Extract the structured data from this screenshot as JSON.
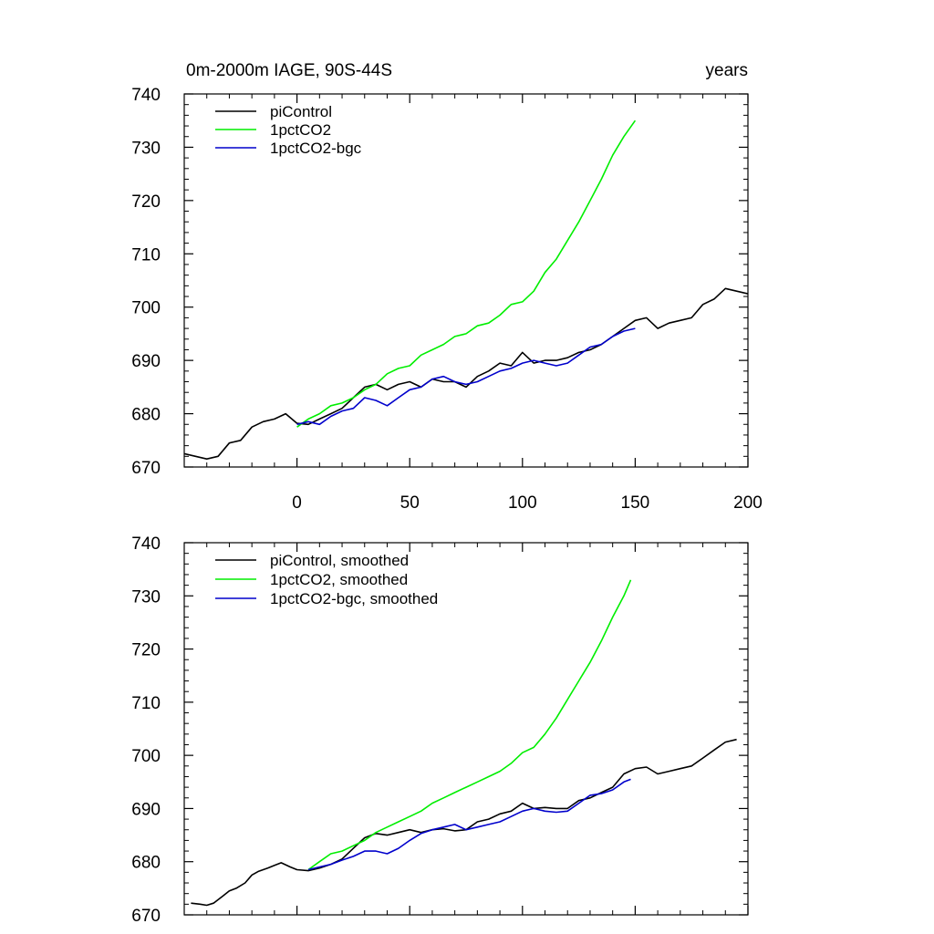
{
  "colors": {
    "piControl": "#000000",
    "1pctCO2": "#00ee00",
    "1pctCO2-bgc": "#0000cc",
    "axis": "#000000",
    "background": "#ffffff"
  },
  "chart_data": [
    {
      "type": "line",
      "title": "0m-2000m IAGE, 90S-44S",
      "title_right": "years",
      "xlabel": "",
      "ylabel": "",
      "xlim": [
        -50,
        200
      ],
      "ylim": [
        670,
        740
      ],
      "xticks": [
        0,
        50,
        100,
        150,
        200
      ],
      "xtick_labels": [
        "0",
        "50",
        "100",
        "150",
        "200"
      ],
      "yticks": [
        670,
        680,
        690,
        700,
        710,
        720,
        730,
        740
      ],
      "ytick_labels": [
        "670",
        "680",
        "690",
        "700",
        "710",
        "720",
        "730",
        "740"
      ],
      "legend_position": "top-left",
      "series": [
        {
          "name": "piControl",
          "color_key": "piControl",
          "x": [
            -50,
            -45,
            -40,
            -35,
            -30,
            -25,
            -20,
            -15,
            -10,
            -5,
            0,
            5,
            10,
            15,
            20,
            25,
            30,
            35,
            40,
            45,
            50,
            55,
            60,
            65,
            70,
            75,
            80,
            85,
            90,
            95,
            100,
            105,
            110,
            115,
            120,
            125,
            130,
            135,
            140,
            145,
            150,
            155,
            160,
            165,
            170,
            175,
            180,
            185,
            190,
            195,
            200
          ],
          "y": [
            672.5,
            672.0,
            671.5,
            672.0,
            674.5,
            675.0,
            677.5,
            678.5,
            679.0,
            680.0,
            678.2,
            678.0,
            679.0,
            680.0,
            681.0,
            683.0,
            685.0,
            685.5,
            684.5,
            685.5,
            686.0,
            685.0,
            686.5,
            686.0,
            686.0,
            685.0,
            687.0,
            688.0,
            689.5,
            689.0,
            691.5,
            689.5,
            690.0,
            690.0,
            690.5,
            691.5,
            692.0,
            693.0,
            694.5,
            696.0,
            697.5,
            698.0,
            696.0,
            697.0,
            697.5,
            698.0,
            700.5,
            701.5,
            703.5,
            703.0,
            702.5
          ]
        },
        {
          "name": "1pctCO2",
          "color_key": "1pctCO2",
          "x": [
            0,
            5,
            10,
            15,
            20,
            25,
            30,
            35,
            40,
            45,
            50,
            55,
            60,
            65,
            70,
            75,
            80,
            85,
            90,
            95,
            100,
            105,
            110,
            115,
            120,
            125,
            130,
            135,
            140,
            145,
            150
          ],
          "y": [
            677.5,
            679.0,
            680.0,
            681.5,
            682.0,
            683.0,
            684.5,
            685.5,
            687.5,
            688.5,
            689.0,
            691.0,
            692.0,
            693.0,
            694.5,
            695.0,
            696.5,
            697.0,
            698.5,
            700.5,
            701.0,
            703.0,
            706.5,
            709.0,
            712.5,
            716.0,
            720.0,
            724.0,
            728.5,
            732.0,
            735.0
          ]
        },
        {
          "name": "1pctCO2-bgc",
          "color_key": "1pctCO2-bgc",
          "x": [
            0,
            5,
            10,
            15,
            20,
            25,
            30,
            35,
            40,
            45,
            50,
            55,
            60,
            65,
            70,
            75,
            80,
            85,
            90,
            95,
            100,
            105,
            110,
            115,
            120,
            125,
            130,
            135,
            140,
            145,
            150
          ],
          "y": [
            678.0,
            678.5,
            678.0,
            679.5,
            680.5,
            681.0,
            683.0,
            682.5,
            681.5,
            683.0,
            684.5,
            685.0,
            686.5,
            687.0,
            686.0,
            685.5,
            686.0,
            687.0,
            688.0,
            688.5,
            689.5,
            690.0,
            689.5,
            689.0,
            689.5,
            691.0,
            692.5,
            693.0,
            694.5,
            695.5,
            696.0
          ]
        }
      ]
    },
    {
      "type": "line",
      "title": "",
      "title_right": "",
      "xlabel": "",
      "ylabel": "",
      "xlim": [
        -50,
        200
      ],
      "ylim": [
        670,
        740
      ],
      "xticks": [
        0,
        50,
        100,
        150,
        200
      ],
      "xtick_labels": [],
      "yticks": [
        670,
        680,
        690,
        700,
        710,
        720,
        730,
        740
      ],
      "ytick_labels": [
        "670",
        "680",
        "690",
        "700",
        "710",
        "720",
        "730",
        "740"
      ],
      "legend_position": "top-left",
      "series": [
        {
          "name": "piControl, smoothed",
          "color_key": "piControl",
          "x": [
            -47,
            -43,
            -40,
            -37,
            -33,
            -30,
            -27,
            -23,
            -20,
            -17,
            -13,
            -10,
            -7,
            -3,
            0,
            5,
            10,
            15,
            20,
            25,
            30,
            35,
            40,
            45,
            50,
            55,
            60,
            65,
            70,
            75,
            80,
            85,
            90,
            95,
            100,
            105,
            110,
            115,
            120,
            125,
            130,
            135,
            140,
            145,
            150,
            155,
            160,
            165,
            170,
            175,
            180,
            185,
            190,
            195
          ],
          "y": [
            672.2,
            672.0,
            671.8,
            672.2,
            673.5,
            674.5,
            675.0,
            676.0,
            677.5,
            678.2,
            678.8,
            679.3,
            679.8,
            679.0,
            678.5,
            678.3,
            678.8,
            679.5,
            680.5,
            682.5,
            684.5,
            685.3,
            685.0,
            685.5,
            686.0,
            685.5,
            686.0,
            686.2,
            685.8,
            686.0,
            687.5,
            688.0,
            689.0,
            689.5,
            691.0,
            690.0,
            690.2,
            690.0,
            690.0,
            691.5,
            692.0,
            693.0,
            694.0,
            696.5,
            697.5,
            697.8,
            696.5,
            697.0,
            697.5,
            698.0,
            699.5,
            701.0,
            702.5,
            703.0
          ]
        },
        {
          "name": "1pctCO2, smoothed",
          "color_key": "1pctCO2",
          "x": [
            5,
            10,
            15,
            20,
            25,
            30,
            35,
            40,
            45,
            50,
            55,
            60,
            65,
            70,
            75,
            80,
            85,
            90,
            95,
            100,
            105,
            110,
            115,
            120,
            125,
            130,
            135,
            140,
            145,
            148
          ],
          "y": [
            678.5,
            680.0,
            681.5,
            682.0,
            683.0,
            684.0,
            685.5,
            686.5,
            687.5,
            688.5,
            689.5,
            691.0,
            692.0,
            693.0,
            694.0,
            695.0,
            696.0,
            697.0,
            698.5,
            700.5,
            701.5,
            704.0,
            707.0,
            710.5,
            714.0,
            717.5,
            721.5,
            726.0,
            730.0,
            733.0
          ]
        },
        {
          "name": "1pctCO2-bgc, smoothed",
          "color_key": "1pctCO2-bgc",
          "x": [
            5,
            10,
            15,
            20,
            25,
            30,
            35,
            40,
            45,
            50,
            55,
            60,
            65,
            70,
            75,
            80,
            85,
            90,
            95,
            100,
            105,
            110,
            115,
            120,
            125,
            130,
            135,
            140,
            145,
            148
          ],
          "y": [
            678.5,
            679.0,
            679.5,
            680.3,
            681.0,
            682.0,
            682.0,
            681.5,
            682.5,
            684.0,
            685.3,
            686.0,
            686.5,
            687.0,
            686.0,
            686.5,
            687.0,
            687.5,
            688.5,
            689.5,
            690.0,
            689.5,
            689.3,
            689.5,
            691.0,
            692.5,
            692.8,
            693.5,
            695.0,
            695.5
          ]
        }
      ]
    }
  ]
}
